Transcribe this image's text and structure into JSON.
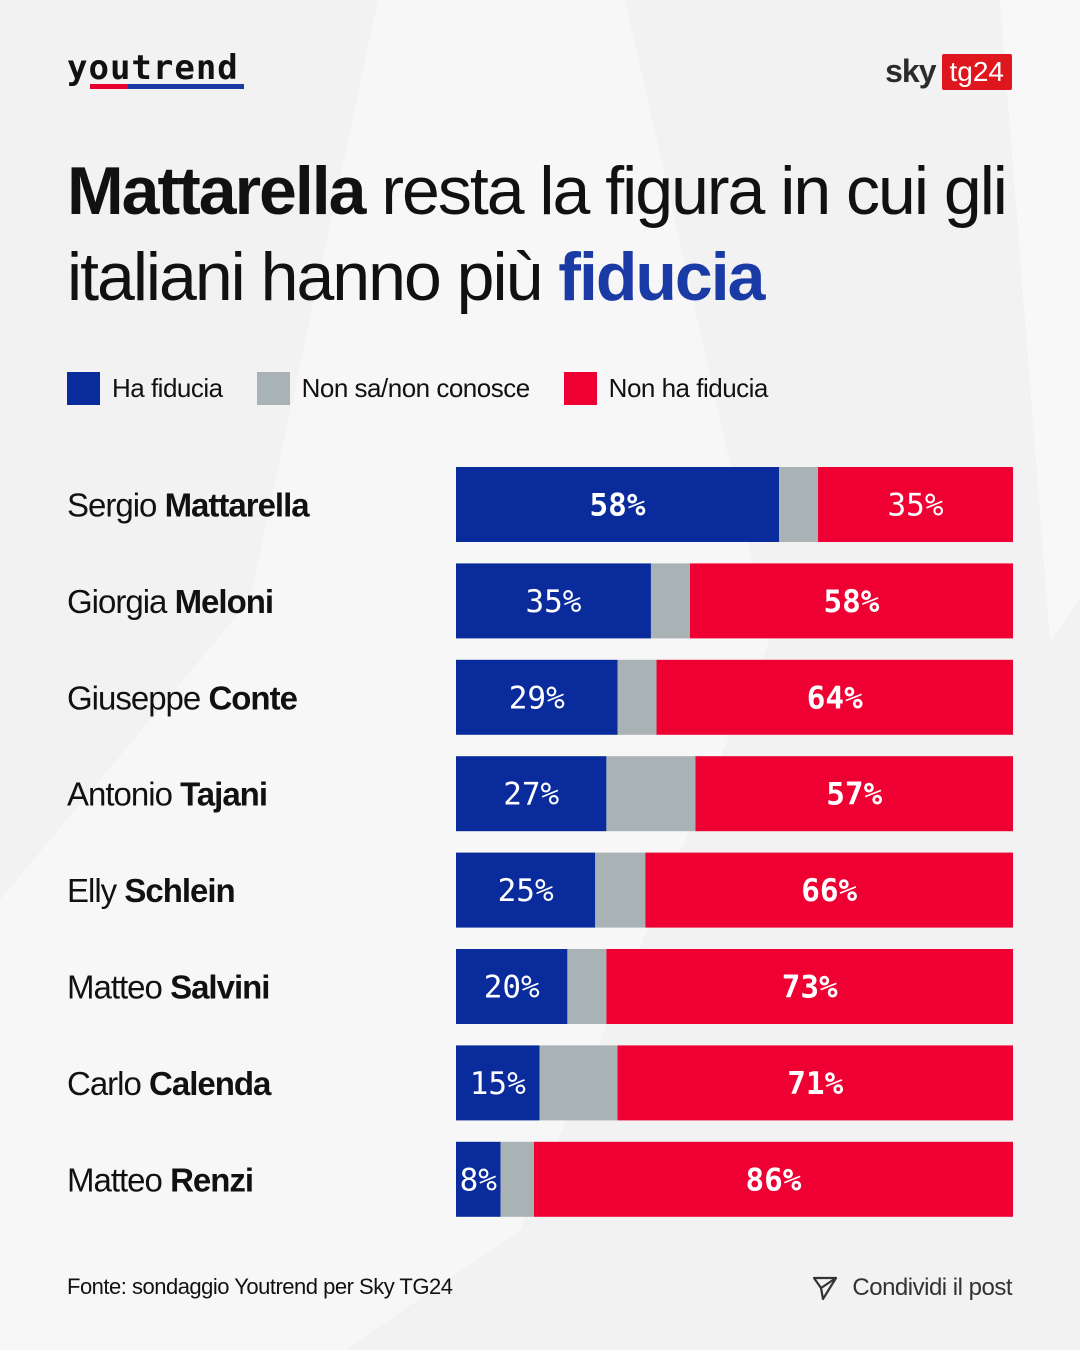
{
  "header": {
    "brand": "youtrend",
    "partner_word": "sky",
    "partner_badge": "tg24"
  },
  "title": {
    "bold_lead": "Mattarella",
    "mid": " resta la figura in cui gli italiani hanno più ",
    "highlight": "fiducia"
  },
  "footer": {
    "source": "Fonte: sondaggio Youtrend per Sky TG24",
    "share": "Condividi il post"
  },
  "colors": {
    "trust": "#0a2b9c",
    "unsure": "#a9b2b5",
    "distrust": "#ee0033",
    "highlight": "#1a3aa6"
  },
  "chart_data": {
    "type": "bar",
    "orientation": "horizontal",
    "stacked": true,
    "legend_position": "top",
    "categories": [
      {
        "first": "Sergio",
        "last": "Mattarella"
      },
      {
        "first": "Giorgia",
        "last": "Meloni"
      },
      {
        "first": "Giuseppe",
        "last": "Conte"
      },
      {
        "first": "Antonio",
        "last": "Tajani"
      },
      {
        "first": "Elly",
        "last": "Schlein"
      },
      {
        "first": "Matteo",
        "last": "Salvini"
      },
      {
        "first": "Carlo",
        "last": "Calenda"
      },
      {
        "first": "Matteo",
        "last": "Renzi"
      }
    ],
    "series": [
      {
        "name": "Ha fiducia",
        "values": [
          58,
          35,
          29,
          27,
          25,
          20,
          15,
          8
        ]
      },
      {
        "name": "Non sa/non conosce",
        "values": [
          7,
          7,
          7,
          16,
          9,
          7,
          14,
          6
        ]
      },
      {
        "name": "Non ha fiducia",
        "values": [
          35,
          58,
          64,
          57,
          66,
          73,
          71,
          86
        ]
      }
    ],
    "data_labels": {
      "trust": [
        "58%",
        "35%",
        "29%",
        "27%",
        "25%",
        "20%",
        "15%",
        "8%"
      ],
      "distrust": [
        "35%",
        "58%",
        "64%",
        "57%",
        "66%",
        "73%",
        "71%",
        "86%"
      ]
    },
    "bold_label": {
      "trust": [
        true,
        false,
        false,
        false,
        false,
        false,
        false,
        false
      ],
      "distrust": [
        false,
        true,
        true,
        true,
        true,
        true,
        true,
        true
      ]
    },
    "xlim": [
      0,
      100
    ]
  }
}
